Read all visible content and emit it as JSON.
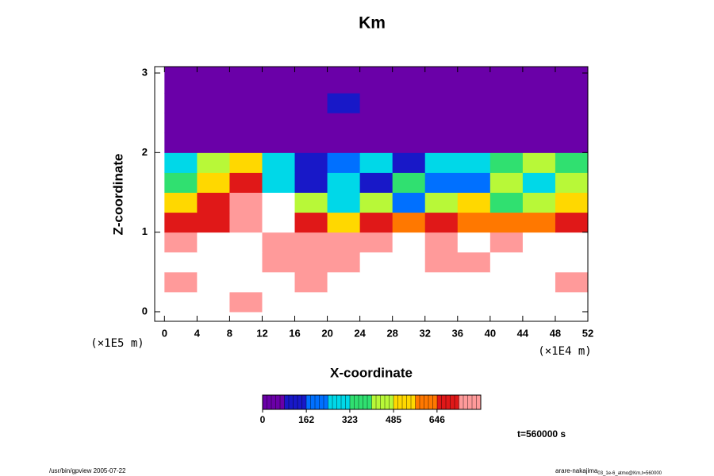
{
  "chart_data": {
    "type": "heatmap",
    "title": "Km",
    "xlabel": "X-coordinate",
    "ylabel": "Z-coordinate",
    "x_unit": "(×1E4 m)",
    "y_unit": "(×1E5 m)",
    "annotation": "t=560000 s",
    "xlim": [
      -1.2,
      52
    ],
    "ylim": [
      -0.12,
      3.08
    ],
    "xticks": [
      0,
      4,
      8,
      12,
      16,
      20,
      24,
      28,
      32,
      36,
      40,
      44,
      48,
      52
    ],
    "yticks": [
      0,
      1,
      2,
      3
    ],
    "xbins": [
      0,
      4,
      8,
      12,
      16,
      20,
      24,
      28,
      32,
      36,
      40,
      44,
      48,
      52
    ],
    "ybins": [
      0,
      0.25,
      0.5,
      0.75,
      1,
      1.25,
      1.5,
      1.75,
      2,
      2.25,
      2.5,
      2.75,
      3
    ],
    "values": [
      [
        900,
        900,
        760,
        900,
        900,
        900,
        900,
        900,
        900,
        900,
        900,
        900,
        900
      ],
      [
        740,
        900,
        900,
        900,
        770,
        900,
        900,
        900,
        900,
        900,
        900,
        900,
        760
      ],
      [
        900,
        900,
        900,
        760,
        780,
        750,
        900,
        900,
        760,
        760,
        900,
        900,
        900
      ],
      [
        760,
        900,
        900,
        750,
        740,
        730,
        760,
        900,
        770,
        900,
        760,
        900,
        900
      ],
      [
        700,
        650,
        760,
        900,
        680,
        560,
        720,
        620,
        660,
        640,
        600,
        620,
        700
      ],
      [
        560,
        680,
        740,
        900,
        420,
        320,
        480,
        200,
        450,
        500,
        380,
        460,
        520
      ],
      [
        380,
        520,
        700,
        250,
        160,
        300,
        120,
        350,
        180,
        240,
        420,
        300,
        450
      ],
      [
        320,
        420,
        560,
        300,
        90,
        200,
        260,
        150,
        320,
        260,
        380,
        420,
        360
      ],
      [
        0,
        0,
        20,
        0,
        40,
        30,
        60,
        0,
        0,
        0,
        0,
        0,
        0
      ],
      [
        0,
        0,
        0,
        0,
        0,
        0,
        0,
        0,
        0,
        0,
        0,
        0,
        0
      ],
      [
        30,
        50,
        40,
        60,
        80,
        90,
        60,
        0,
        0,
        20,
        30,
        20,
        0
      ],
      [
        0,
        0,
        0,
        0,
        0,
        0,
        0,
        0,
        0,
        0,
        0,
        0,
        0
      ]
    ],
    "clim": [
      0,
      808
    ],
    "cticks": [
      0,
      162,
      323,
      485,
      646
    ],
    "colors": [
      "#6a00a8",
      "#1818c8",
      "#0070ff",
      "#00d8e8",
      "#30e070",
      "#b8f838",
      "#ffd800",
      "#ff7800",
      "#e01818",
      "#ff9a9a"
    ],
    "over_color": "#ffffff"
  },
  "footer": {
    "left": "/usr/bin/gpview 2005-07-22",
    "right": "arare-nakajima",
    "right_sub": "03_1e-6_atmo@Km,t=560000"
  }
}
